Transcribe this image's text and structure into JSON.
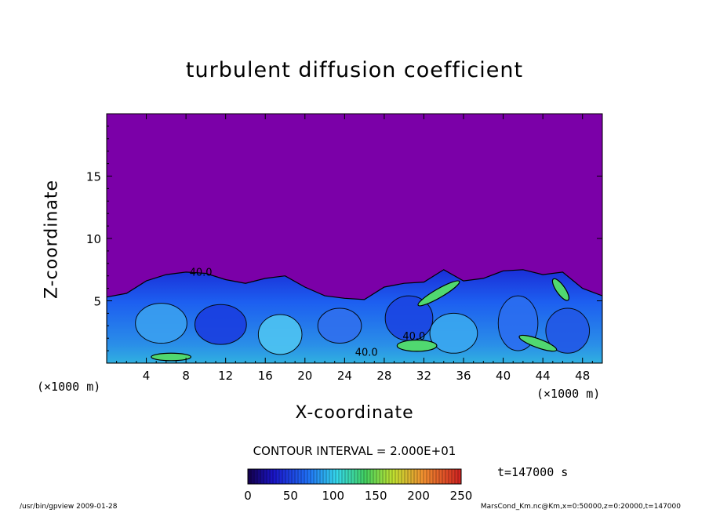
{
  "chart_data": {
    "type": "heatmap",
    "title": "turbulent diffusion coefficient",
    "xlabel": "X-coordinate",
    "ylabel": "Z-coordinate",
    "x_unit": "(×1000 m)",
    "z_unit": "(×1000 m)",
    "xlim": [
      0,
      50
    ],
    "ylim": [
      0,
      20
    ],
    "x_ticks": [
      4,
      8,
      12,
      16,
      20,
      24,
      28,
      32,
      36,
      40,
      44,
      48
    ],
    "y_ticks": [
      5,
      10,
      15
    ],
    "contour_interval_text": "CONTOUR INTERVAL = 2.000E+01",
    "contour_labels": [
      {
        "text": "40.0",
        "x": 9.5,
        "z": 7.0
      },
      {
        "text": "40.0",
        "x": 31.0,
        "z": 1.9
      },
      {
        "text": "40.0",
        "x": 26.2,
        "z": 0.6
      }
    ],
    "colorbar": {
      "min": 0,
      "max": 250,
      "ticks": [
        0,
        50,
        100,
        150,
        200,
        250
      ]
    },
    "time_label": "t=147000 s",
    "background_value": 0,
    "turbulent_layer_top_km": [
      [
        0,
        5.3
      ],
      [
        2,
        5.6
      ],
      [
        4,
        6.6
      ],
      [
        6,
        7.1
      ],
      [
        8,
        7.3
      ],
      [
        10,
        7.2
      ],
      [
        12,
        6.7
      ],
      [
        14,
        6.4
      ],
      [
        16,
        6.8
      ],
      [
        18,
        7.0
      ],
      [
        20,
        6.1
      ],
      [
        22,
        5.4
      ],
      [
        24,
        5.2
      ],
      [
        26,
        5.1
      ],
      [
        28,
        6.1
      ],
      [
        30,
        6.4
      ],
      [
        32,
        6.5
      ],
      [
        34,
        7.5
      ],
      [
        36,
        6.6
      ],
      [
        38,
        6.8
      ],
      [
        40,
        7.4
      ],
      [
        42,
        7.5
      ],
      [
        44,
        7.1
      ],
      [
        46,
        7.3
      ],
      [
        48,
        6.0
      ],
      [
        50,
        5.4
      ]
    ]
  },
  "footer": {
    "left": "/usr/bin/gpview  2009-01-28",
    "right": "MarsCond_Km.nc@Km,x=0:50000,z=0:20000,t=147000"
  }
}
